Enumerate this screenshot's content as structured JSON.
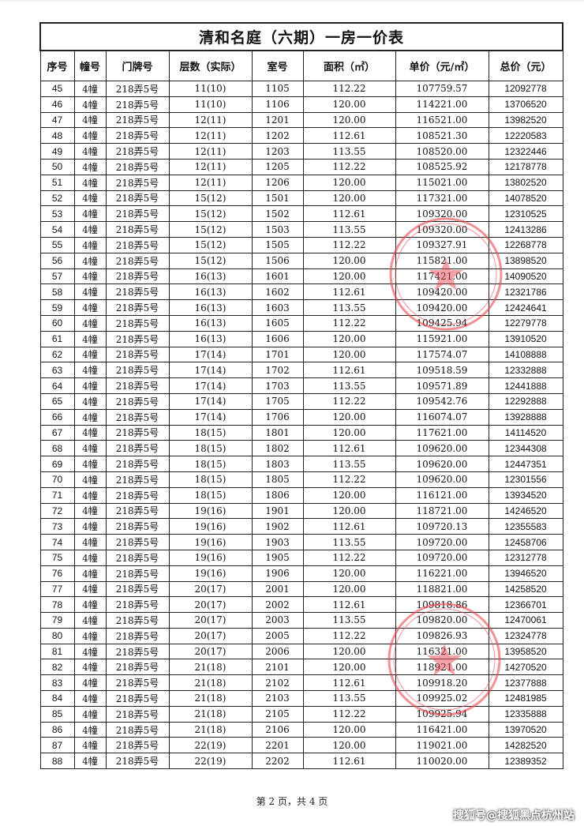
{
  "title": "清和名庭（六期）一房一价表",
  "headers": [
    "序号",
    "幢号",
    "门牌号",
    "层数（实际）",
    "室号",
    "面积（㎡）",
    "单价（元/㎡）",
    "总价（元）"
  ],
  "rows": [
    [
      "45",
      "4幢",
      "218弄5号",
      "11(10)",
      "1105",
      "112.22",
      "107759.57",
      "12092778"
    ],
    [
      "46",
      "4幢",
      "218弄5号",
      "11(10)",
      "1106",
      "120.00",
      "114221.00",
      "13706520"
    ],
    [
      "47",
      "4幢",
      "218弄5号",
      "12(11)",
      "1201",
      "120.00",
      "116521.00",
      "13982520"
    ],
    [
      "48",
      "4幢",
      "218弄5号",
      "12(11)",
      "1202",
      "112.61",
      "108521.30",
      "12220583"
    ],
    [
      "49",
      "4幢",
      "218弄5号",
      "12(11)",
      "1203",
      "113.55",
      "108520.00",
      "12322446"
    ],
    [
      "50",
      "4幢",
      "218弄5号",
      "12(11)",
      "1205",
      "112.22",
      "108525.92",
      "12178778"
    ],
    [
      "51",
      "4幢",
      "218弄5号",
      "12(11)",
      "1206",
      "120.00",
      "115021.00",
      "13802520"
    ],
    [
      "52",
      "4幢",
      "218弄5号",
      "15(12)",
      "1501",
      "120.00",
      "117321.00",
      "14078520"
    ],
    [
      "53",
      "4幢",
      "218弄5号",
      "15(12)",
      "1502",
      "112.61",
      "109320.00",
      "12310525"
    ],
    [
      "54",
      "4幢",
      "218弄5号",
      "15(12)",
      "1503",
      "113.55",
      "109320.00",
      "12413286"
    ],
    [
      "55",
      "4幢",
      "218弄5号",
      "15(12)",
      "1505",
      "112.22",
      "109327.91",
      "12268778"
    ],
    [
      "56",
      "4幢",
      "218弄5号",
      "15(12)",
      "1506",
      "120.00",
      "115821.00",
      "13898520"
    ],
    [
      "57",
      "4幢",
      "218弄5号",
      "16(13)",
      "1601",
      "120.00",
      "117421.00",
      "14090520"
    ],
    [
      "58",
      "4幢",
      "218弄5号",
      "16(13)",
      "1602",
      "112.61",
      "109420.00",
      "12321786"
    ],
    [
      "59",
      "4幢",
      "218弄5号",
      "16(13)",
      "1603",
      "113.55",
      "109420.00",
      "12424641"
    ],
    [
      "60",
      "4幢",
      "218弄5号",
      "16(13)",
      "1605",
      "112.22",
      "109425.94",
      "12279778"
    ],
    [
      "61",
      "4幢",
      "218弄5号",
      "16(13)",
      "1606",
      "120.00",
      "115921.00",
      "13910520"
    ],
    [
      "62",
      "4幢",
      "218弄5号",
      "17(14)",
      "1701",
      "120.00",
      "117574.07",
      "14108888"
    ],
    [
      "63",
      "4幢",
      "218弄5号",
      "17(14)",
      "1702",
      "112.61",
      "109518.59",
      "12332888"
    ],
    [
      "64",
      "4幢",
      "218弄5号",
      "17(14)",
      "1703",
      "113.55",
      "109571.89",
      "12441888"
    ],
    [
      "65",
      "4幢",
      "218弄5号",
      "17(14)",
      "1705",
      "112.22",
      "109542.76",
      "12292888"
    ],
    [
      "66",
      "4幢",
      "218弄5号",
      "17(14)",
      "1706",
      "120.00",
      "116074.07",
      "13928888"
    ],
    [
      "67",
      "4幢",
      "218弄5号",
      "18(15)",
      "1801",
      "120.00",
      "117621.00",
      "14114520"
    ],
    [
      "68",
      "4幢",
      "218弄5号",
      "18(15)",
      "1802",
      "112.61",
      "109620.00",
      "12344308"
    ],
    [
      "69",
      "4幢",
      "218弄5号",
      "18(15)",
      "1803",
      "113.55",
      "109620.00",
      "12447351"
    ],
    [
      "70",
      "4幢",
      "218弄5号",
      "18(15)",
      "1805",
      "112.22",
      "109620.00",
      "12301556"
    ],
    [
      "71",
      "4幢",
      "218弄5号",
      "18(15)",
      "1806",
      "120.00",
      "116121.00",
      "13934520"
    ],
    [
      "72",
      "4幢",
      "218弄5号",
      "19(16)",
      "1901",
      "120.00",
      "118721.00",
      "14246520"
    ],
    [
      "73",
      "4幢",
      "218弄5号",
      "19(16)",
      "1902",
      "112.61",
      "109720.13",
      "12355583"
    ],
    [
      "74",
      "4幢",
      "218弄5号",
      "19(16)",
      "1903",
      "113.55",
      "109720.00",
      "12458706"
    ],
    [
      "75",
      "4幢",
      "218弄5号",
      "19(16)",
      "1905",
      "112.22",
      "109720.00",
      "12312778"
    ],
    [
      "76",
      "4幢",
      "218弄5号",
      "19(16)",
      "1906",
      "120.00",
      "116221.00",
      "13946520"
    ],
    [
      "77",
      "4幢",
      "218弄5号",
      "20(17)",
      "2001",
      "120.00",
      "118821.00",
      "14258520"
    ],
    [
      "78",
      "4幢",
      "218弄5号",
      "20(17)",
      "2002",
      "112.61",
      "109818.86",
      "12366701"
    ],
    [
      "79",
      "4幢",
      "218弄5号",
      "20(17)",
      "2003",
      "113.55",
      "109820.00",
      "12470061"
    ],
    [
      "80",
      "4幢",
      "218弄5号",
      "20(17)",
      "2005",
      "112.22",
      "109826.93",
      "12324778"
    ],
    [
      "81",
      "4幢",
      "218弄5号",
      "20(17)",
      "2006",
      "120.00",
      "116321.00",
      "13958520"
    ],
    [
      "82",
      "4幢",
      "218弄5号",
      "21(18)",
      "2101",
      "120.00",
      "118921.00",
      "14270520"
    ],
    [
      "83",
      "4幢",
      "218弄5号",
      "21(18)",
      "2102",
      "112.61",
      "109918.20",
      "12377888"
    ],
    [
      "84",
      "4幢",
      "218弄5号",
      "21(18)",
      "2103",
      "113.55",
      "109925.02",
      "12481985"
    ],
    [
      "85",
      "4幢",
      "218弄5号",
      "21(18)",
      "2105",
      "112.22",
      "109925.94",
      "12335888"
    ],
    [
      "86",
      "4幢",
      "218弄5号",
      "21(18)",
      "2106",
      "120.00",
      "116421.00",
      "13970520"
    ],
    [
      "87",
      "4幢",
      "218弄5号",
      "22(19)",
      "2201",
      "120.00",
      "119021.00",
      "14282520"
    ],
    [
      "88",
      "4幢",
      "218弄5号",
      "22(19)",
      "2202",
      "112.61",
      "110020.00",
      "12389352"
    ]
  ],
  "footer": "第 2 页，共 4 页",
  "watermark": "搜狐号@搜狐黑点杭州站",
  "colors": {
    "stamp": "#e8474f",
    "border": "#222222"
  }
}
